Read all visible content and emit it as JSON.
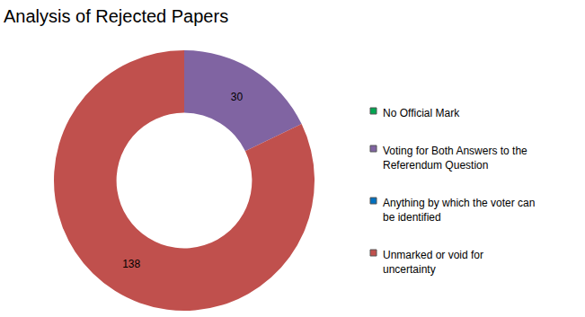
{
  "chart_data": {
    "type": "pie",
    "title": "Analysis of Rejected Papers",
    "categories": [
      "No Official Mark",
      "Voting for Both Answers to the Referendum Question",
      "Anything by which the voter can be identified",
      "Unmarked or void for uncertainty"
    ],
    "values": [
      0,
      30,
      0,
      138
    ],
    "colors": [
      "#00a651",
      "#8064a2",
      "#0070c0",
      "#c0504d"
    ],
    "data_labels": true
  }
}
